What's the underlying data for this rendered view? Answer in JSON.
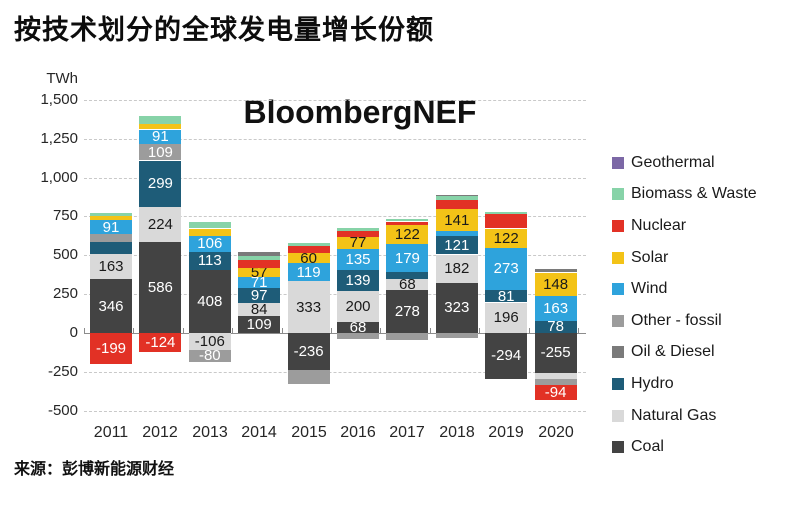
{
  "title": "按技术划分的全球发电量增长份额",
  "watermark": "BloombergNEF",
  "source": "来源：彭博新能源财经",
  "chart_data": {
    "type": "bar",
    "stacked": true,
    "title": "按技术划分的全球发电量增长份额",
    "unit_label": "TWh",
    "ylabel": "TWh",
    "xlabel": "",
    "ylim": [
      -500,
      1500
    ],
    "grid": "dashed horizontal",
    "legend_position": "right",
    "ytick_values": [
      1500,
      1250,
      1000,
      750,
      500,
      250,
      0,
      -250,
      -500
    ],
    "ytick_labels": [
      "1,500",
      "1,250",
      "1,000",
      "750",
      "500",
      "250",
      "0",
      "-250",
      "-500"
    ],
    "categories": [
      "2011",
      "2012",
      "2013",
      "2014",
      "2015",
      "2016",
      "2017",
      "2018",
      "2019",
      "2020"
    ],
    "legend": [
      {
        "label": "Geothermal",
        "color": "#7C68A6"
      },
      {
        "label": "Biomass & Waste",
        "color": "#87D3A8"
      },
      {
        "label": "Nuclear",
        "color": "#E23125"
      },
      {
        "label": "Solar",
        "color": "#F3C317"
      },
      {
        "label": "Wind",
        "color": "#2EA3DC"
      },
      {
        "label": "Other - fossil",
        "color": "#9C9C9C"
      },
      {
        "label": "Oil & Diesel",
        "color": "#7A7A7A"
      },
      {
        "label": "Hydro",
        "color": "#1E5C78"
      },
      {
        "label": "Natural Gas",
        "color": "#D9D9D9"
      },
      {
        "label": "Coal",
        "color": "#434343"
      }
    ],
    "label_text_colors": {
      "Geothermal": "#ffffff",
      "Biomass & Waste": "#1a1a1a",
      "Nuclear": "#ffffff",
      "Solar": "#1a1a1a",
      "Wind": "#ffffff",
      "Other - fossil": "#ffffff",
      "Oil & Diesel": "#ffffff",
      "Hydro": "#ffffff",
      "Natural Gas": "#1a1a1a",
      "Coal": "#ffffff"
    },
    "bars": [
      {
        "year": "2011",
        "positive": [
          {
            "tech": "Coal",
            "value": 346,
            "label": "346"
          },
          {
            "tech": "Natural Gas",
            "value": 163,
            "label": "163"
          },
          {
            "tech": "Hydro",
            "value": 75
          },
          {
            "tech": "Other - fossil",
            "value": 50
          },
          {
            "tech": "Wind",
            "value": 91,
            "label": "91"
          },
          {
            "tech": "Solar",
            "value": 25
          },
          {
            "tech": "Biomass & Waste",
            "value": 20
          }
        ],
        "negative": [
          {
            "tech": "Nuclear",
            "value": -199,
            "label": "-199"
          }
        ]
      },
      {
        "year": "2012",
        "positive": [
          {
            "tech": "Coal",
            "value": 586,
            "label": "586"
          },
          {
            "tech": "Natural Gas",
            "value": 224,
            "label": "224"
          },
          {
            "tech": "Hydro",
            "value": 299,
            "label": "299"
          },
          {
            "tech": "Other - fossil",
            "value": 109,
            "label": "109"
          },
          {
            "tech": "Wind",
            "value": 91,
            "label": "91"
          },
          {
            "tech": "Solar",
            "value": 35
          },
          {
            "tech": "Biomass & Waste",
            "value": 50
          }
        ],
        "negative": [
          {
            "tech": "Nuclear",
            "value": -124,
            "label": "-124"
          }
        ]
      },
      {
        "year": "2013",
        "positive": [
          {
            "tech": "Coal",
            "value": 408,
            "label": "408"
          },
          {
            "tech": "Hydro",
            "value": 113,
            "label": "113"
          },
          {
            "tech": "Wind",
            "value": 106,
            "label": "106"
          },
          {
            "tech": "Solar",
            "value": 45
          },
          {
            "tech": "Biomass & Waste",
            "value": 40
          }
        ],
        "negative": [
          {
            "tech": "Natural Gas",
            "value": -106,
            "label": "-106"
          },
          {
            "tech": "Other - fossil",
            "value": -80,
            "label": "-80"
          }
        ]
      },
      {
        "year": "2014",
        "positive": [
          {
            "tech": "Coal",
            "value": 109,
            "label": "109"
          },
          {
            "tech": "Natural Gas",
            "value": 84,
            "label": "84"
          },
          {
            "tech": "Hydro",
            "value": 97,
            "label": "97"
          },
          {
            "tech": "Wind",
            "value": 71,
            "label": "71"
          },
          {
            "tech": "Solar",
            "value": 57,
            "label": "57"
          },
          {
            "tech": "Nuclear",
            "value": 50
          },
          {
            "tech": "Biomass & Waste",
            "value": 30
          },
          {
            "tech": "Oil & Diesel",
            "value": 25
          }
        ],
        "negative": []
      },
      {
        "year": "2015",
        "positive": [
          {
            "tech": "Natural Gas",
            "value": 333,
            "label": "333"
          },
          {
            "tech": "Wind",
            "value": 119,
            "label": "119"
          },
          {
            "tech": "Solar",
            "value": 60,
            "label": "60"
          },
          {
            "tech": "Nuclear",
            "value": 45
          },
          {
            "tech": "Biomass & Waste",
            "value": 25
          }
        ],
        "negative": [
          {
            "tech": "Coal",
            "value": -236,
            "label": "-236"
          },
          {
            "tech": "Other - fossil",
            "value": -90
          }
        ]
      },
      {
        "year": "2016",
        "positive": [
          {
            "tech": "Coal",
            "value": 68,
            "label": "68"
          },
          {
            "tech": "Natural Gas",
            "value": 200,
            "label": "200"
          },
          {
            "tech": "Hydro",
            "value": 139,
            "label": "139"
          },
          {
            "tech": "Wind",
            "value": 135,
            "label": "135"
          },
          {
            "tech": "Solar",
            "value": 77,
            "label": "77"
          },
          {
            "tech": "Nuclear",
            "value": 35
          },
          {
            "tech": "Biomass & Waste",
            "value": 20
          }
        ],
        "negative": [
          {
            "tech": "Other - fossil",
            "value": -40
          }
        ]
      },
      {
        "year": "2017",
        "positive": [
          {
            "tech": "Coal",
            "value": 278,
            "label": "278"
          },
          {
            "tech": "Natural Gas",
            "value": 68,
            "label": "68"
          },
          {
            "tech": "Hydro",
            "value": 45
          },
          {
            "tech": "Wind",
            "value": 179,
            "label": "179"
          },
          {
            "tech": "Solar",
            "value": 122,
            "label": "122"
          },
          {
            "tech": "Nuclear",
            "value": 25
          },
          {
            "tech": "Biomass & Waste",
            "value": 15
          }
        ],
        "negative": [
          {
            "tech": "Other - fossil",
            "value": -45
          }
        ]
      },
      {
        "year": "2018",
        "positive": [
          {
            "tech": "Coal",
            "value": 323,
            "label": "323"
          },
          {
            "tech": "Natural Gas",
            "value": 182,
            "label": "182"
          },
          {
            "tech": "Hydro",
            "value": 121,
            "label": "121"
          },
          {
            "tech": "Wind",
            "value": 29
          },
          {
            "tech": "Solar",
            "value": 141,
            "label": "141"
          },
          {
            "tech": "Nuclear",
            "value": 60
          },
          {
            "tech": "Biomass & Waste",
            "value": 25
          },
          {
            "tech": "Oil & Diesel",
            "value": 8
          }
        ],
        "negative": [
          {
            "tech": "Other - fossil",
            "value": -30
          }
        ]
      },
      {
        "year": "2019",
        "positive": [
          {
            "tech": "Natural Gas",
            "value": 196,
            "label": "196"
          },
          {
            "tech": "Hydro",
            "value": 81,
            "label": "81"
          },
          {
            "tech": "Wind",
            "value": 273,
            "label": "273"
          },
          {
            "tech": "Solar",
            "value": 122,
            "label": "122"
          },
          {
            "tech": "Nuclear",
            "value": 95
          },
          {
            "tech": "Biomass & Waste",
            "value": 12
          }
        ],
        "negative": [
          {
            "tech": "Coal",
            "value": -294,
            "label": "-294"
          }
        ]
      },
      {
        "year": "2020",
        "positive": [
          {
            "tech": "Hydro",
            "value": 78,
            "label": "78"
          },
          {
            "tech": "Wind",
            "value": 163,
            "label": "163"
          },
          {
            "tech": "Solar",
            "value": 148,
            "label": "148"
          },
          {
            "tech": "Oil & Diesel",
            "value": 20
          }
        ],
        "negative": [
          {
            "tech": "Coal",
            "value": -255,
            "label": "-255"
          },
          {
            "tech": "Natural Gas",
            "value": -40
          },
          {
            "tech": "Other - fossil",
            "value": -40
          },
          {
            "tech": "Nuclear",
            "value": -94,
            "label": "-94"
          }
        ]
      }
    ]
  }
}
